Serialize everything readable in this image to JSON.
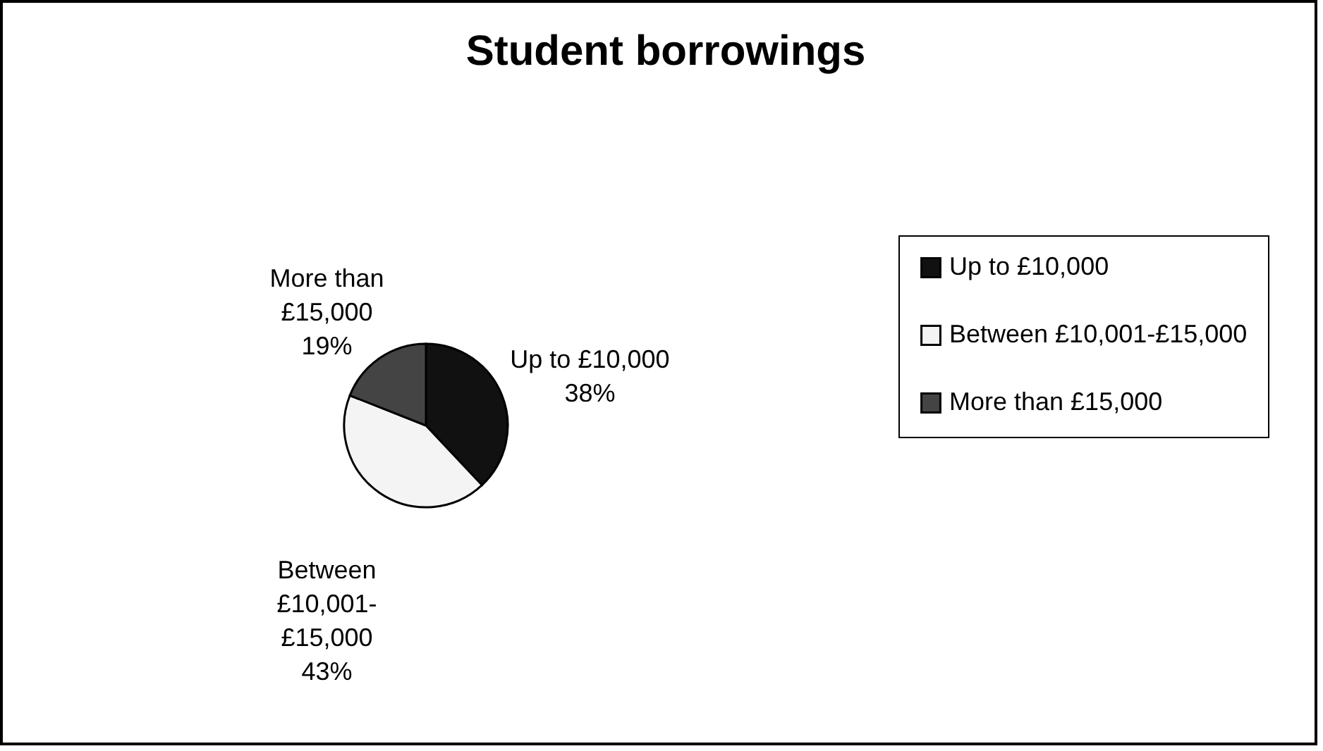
{
  "chart_data": {
    "type": "pie",
    "title": "Student borrowings",
    "categories": [
      "Up to £10,000",
      "Between £10,001-£15,000",
      "More than £15,000"
    ],
    "values": [
      38,
      43,
      19
    ],
    "value_labels": [
      "38%",
      "43%",
      "19%"
    ],
    "colors": [
      "#111111",
      "#f4f4f4",
      "#444444"
    ],
    "legend": "right"
  }
}
